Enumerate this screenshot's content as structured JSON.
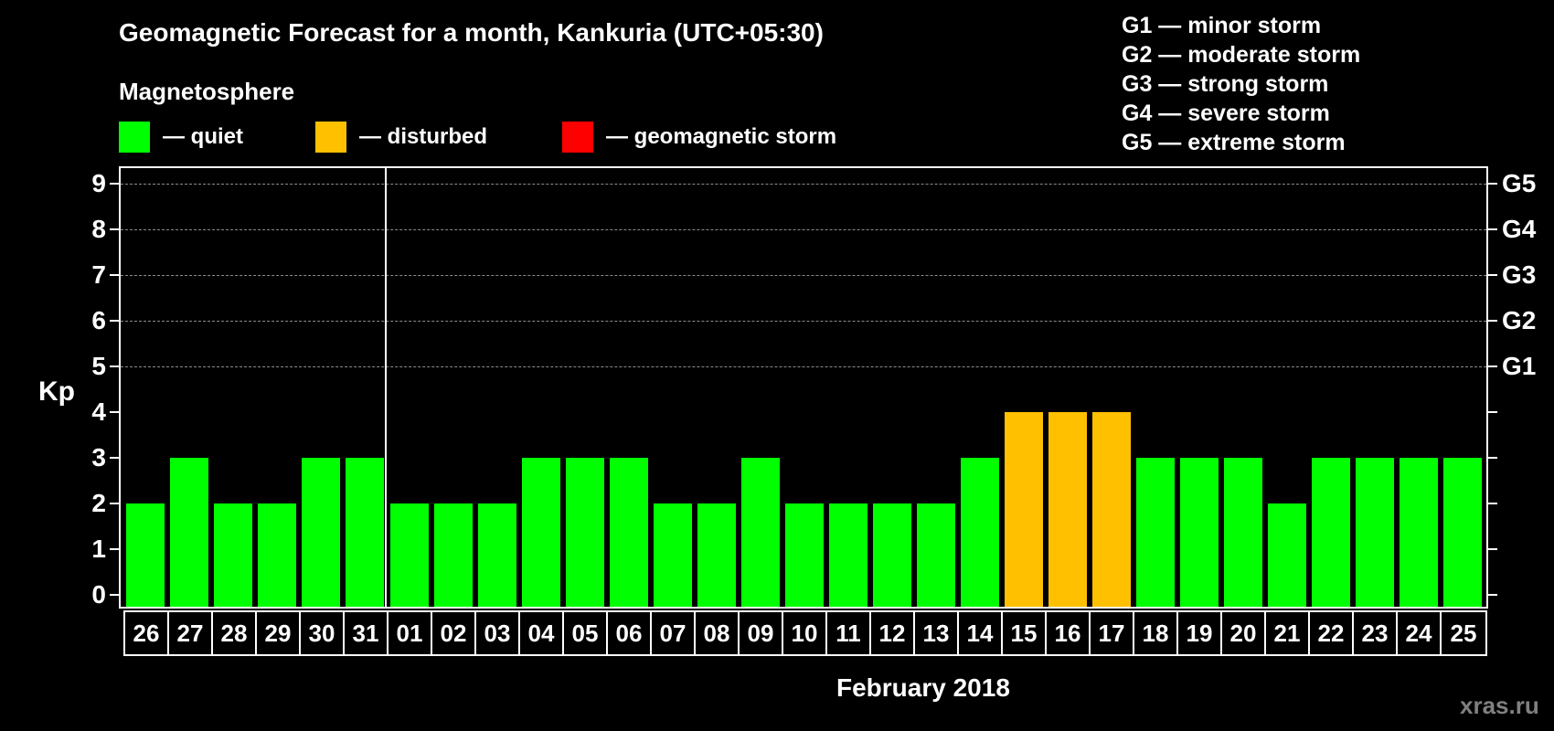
{
  "header": {
    "title": "Geomagnetic Forecast for a month, Kankuria (UTC+05:30)",
    "subtitle": "Magnetosphere"
  },
  "legend": {
    "items": [
      {
        "label": "— quiet",
        "color": "#00ff00"
      },
      {
        "label": "— disturbed",
        "color": "#ffc000"
      },
      {
        "label": "— geomagnetic storm",
        "color": "#ff0000"
      }
    ]
  },
  "storm_scale": {
    "items": [
      "G1 — minor storm",
      "G2 — moderate storm",
      "G3 — strong storm",
      "G4 — severe storm",
      "G5 — extreme storm"
    ]
  },
  "axis": {
    "ylabel": "Kp",
    "yticks": [
      "0",
      "1",
      "2",
      "3",
      "4",
      "5",
      "6",
      "7",
      "8",
      "9"
    ],
    "right_labels": [
      {
        "kp": 5,
        "label": "G1"
      },
      {
        "kp": 6,
        "label": "G2"
      },
      {
        "kp": 7,
        "label": "G3"
      },
      {
        "kp": 8,
        "label": "G4"
      },
      {
        "kp": 9,
        "label": "G5"
      }
    ],
    "xlabel": "February 2018"
  },
  "watermark": "xras.ru",
  "chart_data": {
    "type": "bar",
    "title": "Geomagnetic Forecast for a month, Kankuria (UTC+05:30)",
    "xlabel": "February 2018",
    "ylabel": "Kp",
    "ylim": [
      0,
      9
    ],
    "grid": true,
    "legend_position": "top",
    "categories": [
      "26",
      "27",
      "28",
      "29",
      "30",
      "31",
      "01",
      "02",
      "03",
      "04",
      "05",
      "06",
      "07",
      "08",
      "09",
      "10",
      "11",
      "12",
      "13",
      "14",
      "15",
      "16",
      "17",
      "18",
      "19",
      "20",
      "21",
      "22",
      "23",
      "24",
      "25"
    ],
    "values": [
      2,
      3,
      2,
      2,
      3,
      3,
      2,
      2,
      2,
      3,
      3,
      3,
      2,
      2,
      3,
      2,
      2,
      2,
      2,
      3,
      4,
      4,
      4,
      3,
      3,
      3,
      2,
      3,
      3,
      3,
      3
    ],
    "status": [
      "quiet",
      "quiet",
      "quiet",
      "quiet",
      "quiet",
      "quiet",
      "quiet",
      "quiet",
      "quiet",
      "quiet",
      "quiet",
      "quiet",
      "quiet",
      "quiet",
      "quiet",
      "quiet",
      "quiet",
      "quiet",
      "quiet",
      "quiet",
      "disturbed",
      "disturbed",
      "disturbed",
      "quiet",
      "quiet",
      "quiet",
      "quiet",
      "quiet",
      "quiet",
      "quiet",
      "quiet"
    ],
    "status_colors": {
      "quiet": "#00ff00",
      "disturbed": "#ffc000",
      "geomagnetic storm": "#ff0000"
    },
    "right_axis": {
      "5": "G1",
      "6": "G2",
      "7": "G3",
      "8": "G4",
      "9": "G5"
    },
    "month_divider_after": "31"
  }
}
